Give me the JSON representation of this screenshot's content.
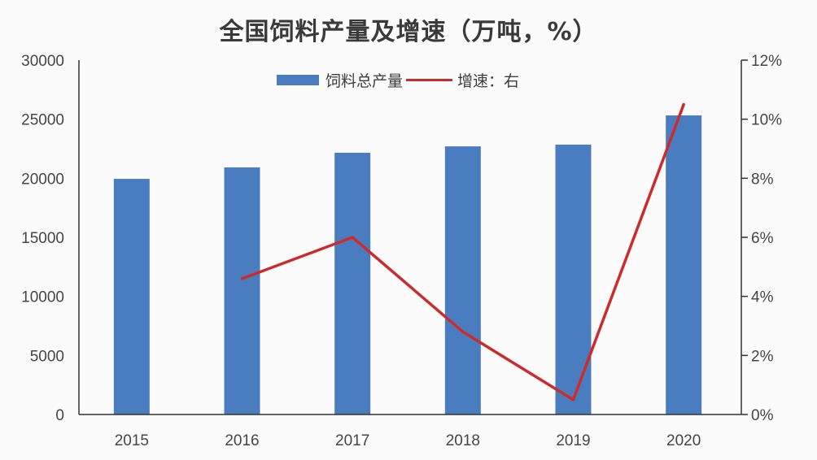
{
  "title": "全国饲料产量及增速（万吨，%）",
  "legend": {
    "bar_label": "饲料总产量",
    "line_label": "增速：右"
  },
  "colors": {
    "bar": "#4a7cc0",
    "line": "#cc2b2b",
    "axis": "#333333"
  },
  "chart_data": {
    "type": "bar+line",
    "title": "全国饲料产量及增速（万吨，%）",
    "categories": [
      "2015",
      "2016",
      "2017",
      "2018",
      "2019",
      "2020"
    ],
    "series": [
      {
        "name": "饲料总产量",
        "type": "bar",
        "axis": "left",
        "values": [
          19950,
          20920,
          22160,
          22700,
          22850,
          25320
        ]
      },
      {
        "name": "增速：右",
        "type": "line",
        "axis": "right",
        "values": [
          null,
          4.6,
          6.0,
          2.8,
          0.5,
          10.5
        ]
      }
    ],
    "left_axis": {
      "ticks": [
        "0",
        "5000",
        "10000",
        "15000",
        "20000",
        "25000",
        "30000"
      ],
      "ylim": [
        0,
        30000
      ]
    },
    "right_axis": {
      "ticks": [
        "0%",
        "2%",
        "4%",
        "6%",
        "8%",
        "10%",
        "12%"
      ],
      "ylim": [
        0,
        12
      ]
    },
    "xlabel": "",
    "ylabel": "",
    "grid": false,
    "legend_position": "top"
  }
}
